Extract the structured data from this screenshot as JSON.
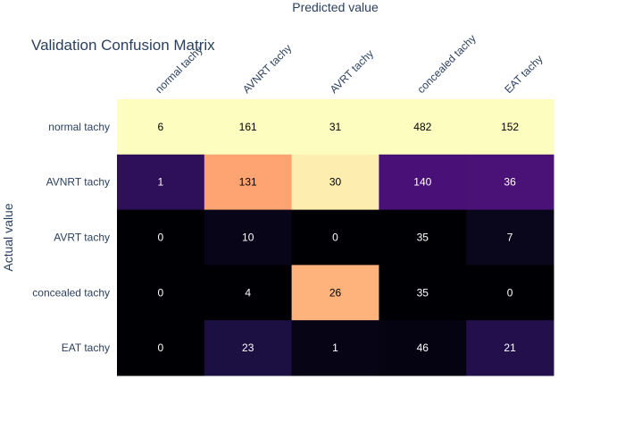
{
  "chart_data": {
    "type": "heatmap",
    "title": "Validation Confusion Matrix",
    "xlabel": "Predicted value",
    "ylabel": "Actual value",
    "x_categories": [
      "normal tachy",
      "AVNRT tachy",
      "AVRT tachy",
      "concealed tachy",
      "EAT tachy"
    ],
    "y_categories": [
      "normal tachy",
      "AVNRT tachy",
      "AVRT tachy",
      "concealed tachy",
      "EAT tachy"
    ],
    "values": [
      [
        6,
        161,
        31,
        482,
        152
      ],
      [
        1,
        131,
        30,
        140,
        36
      ],
      [
        0,
        10,
        0,
        35,
        7
      ],
      [
        0,
        4,
        26,
        35,
        0
      ],
      [
        0,
        23,
        1,
        46,
        21
      ]
    ],
    "colorscale": "magma",
    "legend": "none",
    "grid": false
  }
}
